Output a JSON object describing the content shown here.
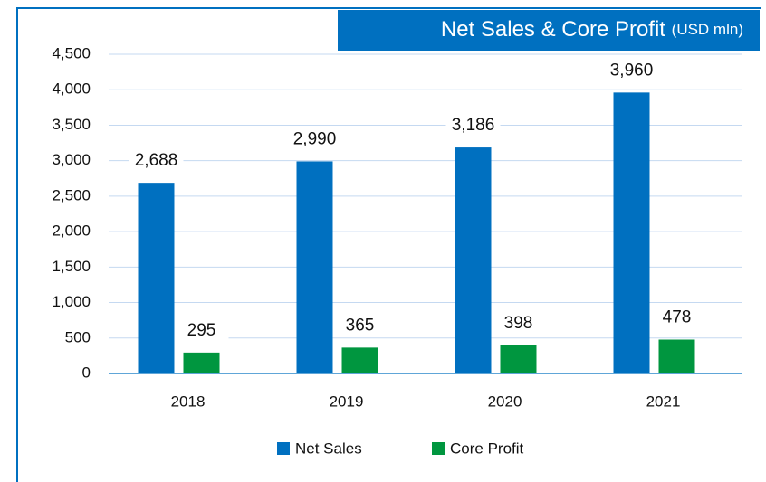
{
  "chart_data": {
    "type": "bar",
    "title": "Net Sales & Core Profit",
    "title_unit": "(USD mln)",
    "categories": [
      "2018",
      "2019",
      "2020",
      "2021"
    ],
    "series": [
      {
        "name": "Net Sales",
        "color": "#0070c0",
        "values": [
          2688,
          2990,
          3186,
          3960
        ],
        "value_labels": [
          "2,688",
          "2,990",
          "3,186",
          "3,960"
        ]
      },
      {
        "name": "Core Profit",
        "color": "#00963f",
        "values": [
          295,
          365,
          398,
          478
        ]
      }
    ],
    "ylim": [
      0,
      4500
    ],
    "yticks": [
      0,
      500,
      {
        "value": 1000,
        "label": "1,000"
      },
      {
        "value": 1500,
        "label": "1,500"
      },
      {
        "value": 2000,
        "label": "2,000"
      },
      {
        "value": 2500,
        "label": "2,500"
      },
      {
        "value": 3000,
        "label": "3,000"
      },
      {
        "value": 3500,
        "label": "3,500"
      },
      {
        "value": 4000,
        "label": "4,000"
      },
      {
        "value": 4500,
        "label": "4,500"
      }
    ],
    "grid": true,
    "legend": "bottom"
  }
}
